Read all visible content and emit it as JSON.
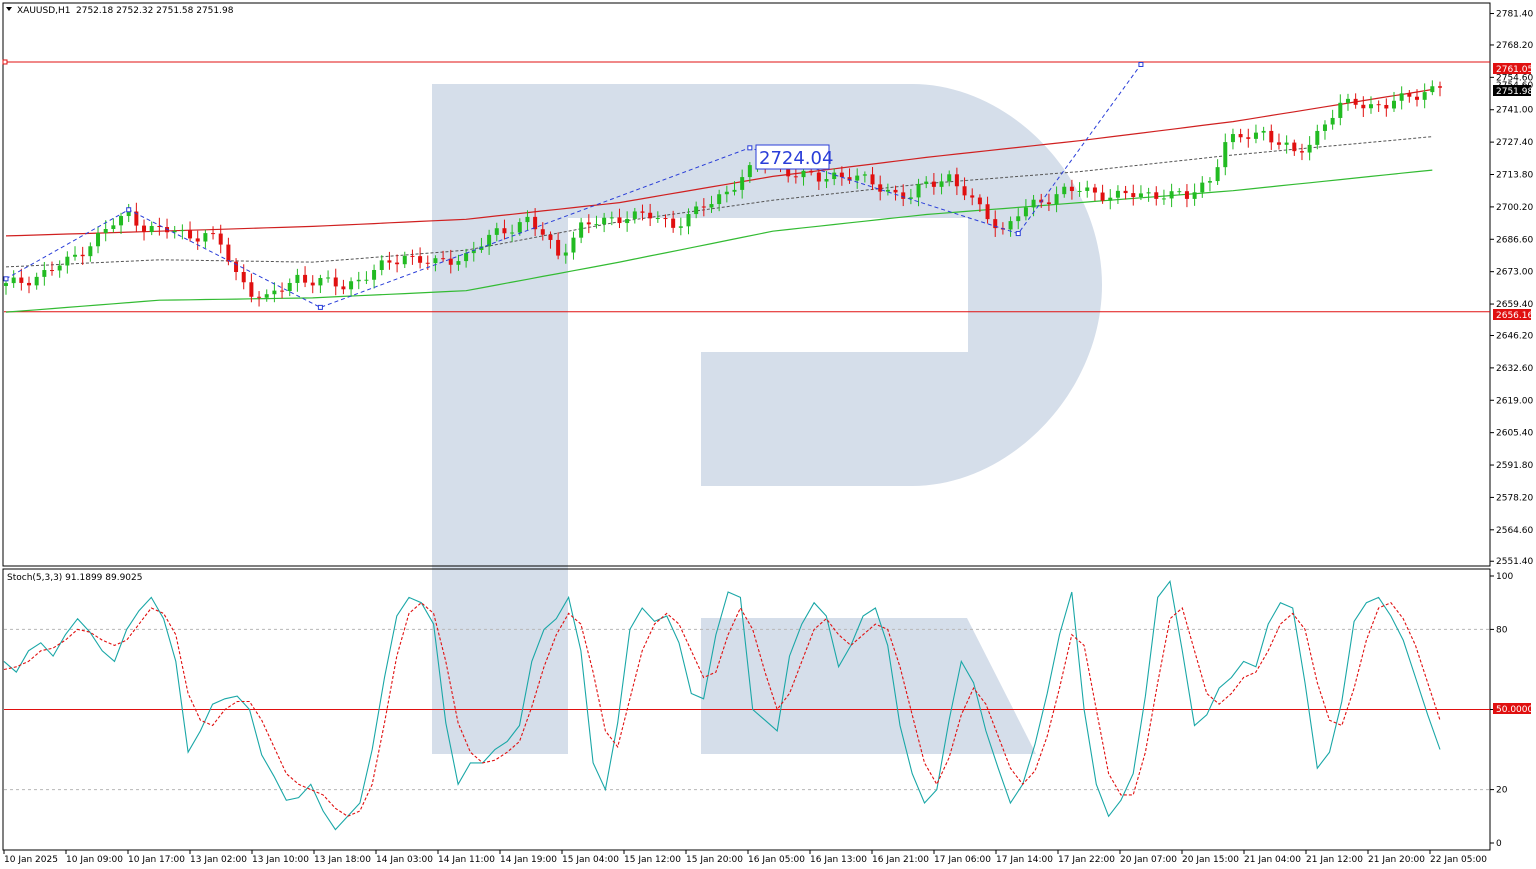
{
  "header": {
    "symbol": "XAUUSD,H1",
    "ohlc": "2752.18 2752.32 2751.58 2751.98",
    "oscillator_label": "Stoch(5,3,3) 91.1899 89.9025"
  },
  "colors": {
    "bull": "#22bb22",
    "bear": "#e01010",
    "level": "#e01010",
    "ma_slow": "#d02020",
    "ma_fast": "#33bb33",
    "ma_mid": "#555555",
    "projection": "#2a3ed8",
    "stoch_main": "#1aa7a7",
    "stoch_signal": "#e01010",
    "watermark": "#d5deea"
  },
  "chart_data": [
    {
      "type": "candlestick",
      "title": "XAUUSD,H1",
      "x_ticks": [
        "10 Jan 2025",
        "10 Jan 09:00",
        "10 Jan 17:00",
        "13 Jan 02:00",
        "13 Jan 10:00",
        "13 Jan 18:00",
        "14 Jan 03:00",
        "14 Jan 11:00",
        "14 Jan 19:00",
        "15 Jan 04:00",
        "15 Jan 12:00",
        "15 Jan 20:00",
        "16 Jan 05:00",
        "16 Jan 13:00",
        "16 Jan 21:00",
        "17 Jan 06:00",
        "17 Jan 14:00",
        "17 Jan 22:00",
        "20 Jan 07:00",
        "20 Jan 15:00",
        "21 Jan 04:00",
        "21 Jan 12:00",
        "21 Jan 20:00",
        "22 Jan 05:00"
      ],
      "y_ticks": [
        "2781.40",
        "2768.20",
        "2754.60",
        "2741.00",
        "2727.40",
        "2713.80",
        "2700.20",
        "2686.60",
        "2673.00",
        "2659.40",
        "2646.20",
        "2632.60",
        "2619.00",
        "2605.40",
        "2591.80",
        "2578.20",
        "2564.60",
        "2551.40"
      ],
      "ylim": [
        2549.4,
        2785.4
      ],
      "close_path": [
        [
          0,
          2667
        ],
        [
          4,
          2671
        ],
        [
          8,
          2677
        ],
        [
          11,
          2685
        ],
        [
          14,
          2693
        ],
        [
          16,
          2697
        ],
        [
          18,
          2692
        ],
        [
          20,
          2690
        ],
        [
          22,
          2690
        ],
        [
          24,
          2688
        ],
        [
          26,
          2689
        ],
        [
          28,
          2684
        ],
        [
          30,
          2672
        ],
        [
          32,
          2665
        ],
        [
          34,
          2661
        ],
        [
          36,
          2666
        ],
        [
          38,
          2671
        ],
        [
          40,
          2669
        ],
        [
          44,
          2667
        ],
        [
          48,
          2673
        ],
        [
          52,
          2680
        ],
        [
          56,
          2676
        ],
        [
          60,
          2680
        ],
        [
          64,
          2689
        ],
        [
          68,
          2695
        ],
        [
          70,
          2688
        ],
        [
          72,
          2680
        ],
        [
          75,
          2692
        ],
        [
          78,
          2694
        ],
        [
          81,
          2697
        ],
        [
          84,
          2696
        ],
        [
          87,
          2693
        ],
        [
          90,
          2698
        ],
        [
          92,
          2702
        ],
        [
          94,
          2707
        ],
        [
          96,
          2713
        ],
        [
          98,
          2717
        ],
        [
          100,
          2721
        ],
        [
          102,
          2715
        ],
        [
          104,
          2713
        ],
        [
          106,
          2712
        ],
        [
          108,
          2714
        ],
        [
          110,
          2713
        ],
        [
          113,
          2710
        ],
        [
          116,
          2706
        ],
        [
          118,
          2704
        ],
        [
          120,
          2710
        ],
        [
          123,
          2713
        ],
        [
          126,
          2702
        ],
        [
          128,
          2697
        ],
        [
          130,
          2690
        ],
        [
          132,
          2697
        ],
        [
          135,
          2703
        ],
        [
          138,
          2707
        ],
        [
          140,
          2707
        ],
        [
          142,
          2706
        ],
        [
          145,
          2705
        ],
        [
          148,
          2705
        ],
        [
          151,
          2706
        ],
        [
          154,
          2704
        ],
        [
          157,
          2712
        ],
        [
          159,
          2727
        ],
        [
          162,
          2730
        ],
        [
          164,
          2732
        ],
        [
          166,
          2727
        ],
        [
          168,
          2722
        ],
        [
          170,
          2727
        ],
        [
          172,
          2736
        ],
        [
          174,
          2742
        ],
        [
          176,
          2744
        ],
        [
          178,
          2743
        ],
        [
          180,
          2743
        ],
        [
          182,
          2745
        ],
        [
          185,
          2749
        ],
        [
          187,
          2751
        ]
      ],
      "resistance_level": "2761.05",
      "support_level": "2656.16",
      "current_price": "2751.98",
      "partial_price_label": "2754.60",
      "projection_label": "2724.04",
      "projection_path": [
        [
          0,
          2670
        ],
        [
          16,
          2699
        ],
        [
          41,
          2658
        ],
        [
          97,
          2725
        ],
        [
          132,
          2689
        ],
        [
          148,
          2760
        ]
      ],
      "ma_slow": [
        [
          0,
          2688
        ],
        [
          20,
          2690
        ],
        [
          40,
          2692
        ],
        [
          60,
          2695
        ],
        [
          80,
          2702
        ],
        [
          100,
          2713
        ],
        [
          120,
          2721
        ],
        [
          140,
          2728
        ],
        [
          160,
          2736
        ],
        [
          187,
          2750
        ]
      ],
      "ma_fast": [
        [
          0,
          2656
        ],
        [
          20,
          2661
        ],
        [
          40,
          2662
        ],
        [
          60,
          2665
        ],
        [
          80,
          2677
        ],
        [
          100,
          2690
        ],
        [
          120,
          2697
        ],
        [
          140,
          2702
        ],
        [
          160,
          2707
        ],
        [
          187,
          2716
        ]
      ],
      "ma_mid": [
        [
          0,
          2675
        ],
        [
          20,
          2678
        ],
        [
          40,
          2677
        ],
        [
          60,
          2682
        ],
        [
          80,
          2694
        ],
        [
          100,
          2703
        ],
        [
          120,
          2710
        ],
        [
          140,
          2715
        ],
        [
          160,
          2722
        ],
        [
          187,
          2730
        ]
      ]
    },
    {
      "type": "line",
      "title": "Stoch(5,3,3) 91.1899 89.9025",
      "ylim": [
        0,
        100
      ],
      "y_ticks": [
        "100",
        "80",
        "50.0000",
        "20",
        "0"
      ],
      "levels": [
        80,
        50,
        20
      ],
      "series": [
        {
          "values": [
            68,
            64,
            72,
            75,
            70,
            78,
            84,
            79,
            72,
            68,
            80,
            87,
            92,
            84,
            68,
            34,
            42,
            52,
            54,
            55,
            50,
            33,
            25,
            16,
            17,
            22,
            12,
            5,
            10,
            15,
            35,
            62,
            85,
            92,
            90,
            82,
            45,
            22,
            30,
            30,
            35,
            38,
            44,
            68,
            80,
            84,
            92,
            72,
            30,
            20,
            45,
            80,
            88,
            83,
            85,
            75,
            56,
            54,
            78,
            94,
            92,
            50,
            46,
            42,
            70,
            82,
            90,
            85,
            66,
            74,
            85,
            88,
            74,
            44,
            26,
            15,
            20,
            46,
            68,
            60,
            42,
            28,
            15,
            22,
            37,
            56,
            78,
            94,
            50,
            22,
            10,
            16,
            26,
            55,
            92,
            98,
            72,
            44,
            48,
            58,
            62,
            68,
            66,
            82,
            90,
            88,
            60,
            28,
            34,
            53,
            83,
            90,
            92,
            85,
            76,
            62,
            48,
            35
          ]
        },
        {
          "values": [
            65,
            66,
            68,
            72,
            73,
            76,
            80,
            79,
            76,
            74,
            76,
            82,
            88,
            86,
            78,
            56,
            46,
            44,
            50,
            53,
            53,
            46,
            36,
            26,
            22,
            20,
            18,
            13,
            10,
            12,
            22,
            45,
            70,
            86,
            90,
            86,
            68,
            45,
            34,
            30,
            31,
            34,
            38,
            51,
            66,
            78,
            86,
            82,
            64,
            42,
            36,
            54,
            72,
            82,
            86,
            82,
            72,
            62,
            64,
            78,
            88,
            80,
            64,
            50,
            56,
            68,
            80,
            84,
            78,
            74,
            78,
            82,
            80,
            66,
            48,
            30,
            22,
            32,
            48,
            58,
            52,
            40,
            28,
            22,
            27,
            40,
            58,
            78,
            74,
            50,
            26,
            18,
            18,
            34,
            60,
            84,
            88,
            72,
            56,
            52,
            56,
            62,
            64,
            72,
            82,
            86,
            80,
            60,
            46,
            44,
            58,
            76,
            88,
            90,
            84,
            74,
            60,
            46
          ]
        }
      ]
    }
  ]
}
